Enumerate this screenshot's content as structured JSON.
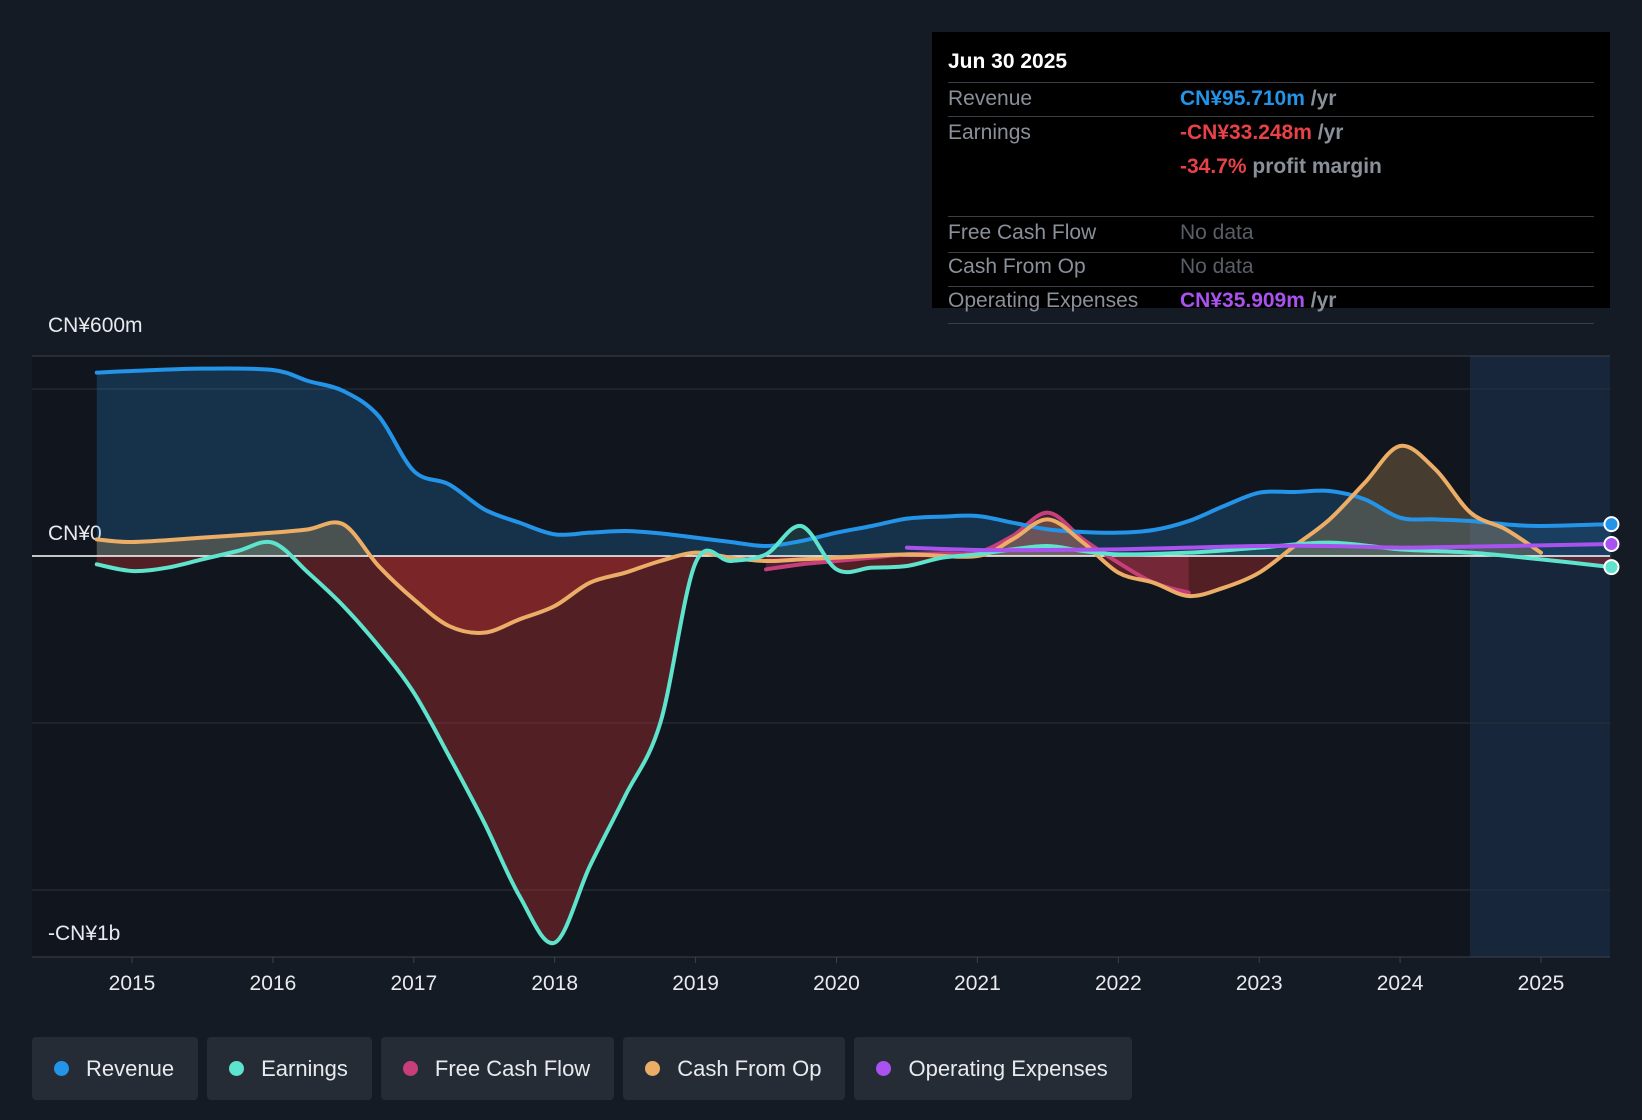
{
  "chart_data": {
    "type": "line",
    "title": "",
    "y_labels": {
      "top": "CN¥600m",
      "zero": "CN¥0",
      "bottom": "-CN¥1b"
    },
    "ylim": [
      -1200,
      600
    ],
    "x_ticks": [
      "2015",
      "2016",
      "2017",
      "2018",
      "2019",
      "2020",
      "2021",
      "2022",
      "2023",
      "2024",
      "2025"
    ],
    "forecast_start": 2024.5,
    "series": [
      {
        "name": "Revenue",
        "color": "#2394e8",
        "fill": true,
        "points": [
          [
            2014.75,
            550
          ],
          [
            2015.0,
            555
          ],
          [
            2015.5,
            562
          ],
          [
            2016.0,
            558
          ],
          [
            2016.25,
            525
          ],
          [
            2016.5,
            495
          ],
          [
            2016.75,
            420
          ],
          [
            2017.0,
            255
          ],
          [
            2017.25,
            215
          ],
          [
            2017.5,
            140
          ],
          [
            2017.75,
            100
          ],
          [
            2018.0,
            65
          ],
          [
            2018.25,
            70
          ],
          [
            2018.5,
            75
          ],
          [
            2018.75,
            68
          ],
          [
            2019.0,
            55
          ],
          [
            2019.25,
            42
          ],
          [
            2019.5,
            30
          ],
          [
            2019.75,
            45
          ],
          [
            2020.0,
            70
          ],
          [
            2020.25,
            90
          ],
          [
            2020.5,
            112
          ],
          [
            2020.75,
            118
          ],
          [
            2021.0,
            120
          ],
          [
            2021.25,
            100
          ],
          [
            2021.5,
            80
          ],
          [
            2021.75,
            72
          ],
          [
            2022.0,
            70
          ],
          [
            2022.25,
            78
          ],
          [
            2022.5,
            105
          ],
          [
            2022.75,
            150
          ],
          [
            2023.0,
            190
          ],
          [
            2023.25,
            192
          ],
          [
            2023.5,
            195
          ],
          [
            2023.75,
            170
          ],
          [
            2024.0,
            115
          ],
          [
            2024.25,
            110
          ],
          [
            2024.5,
            105
          ],
          [
            2024.75,
            95
          ],
          [
            2025.0,
            90
          ],
          [
            2025.5,
            95.71
          ]
        ]
      },
      {
        "name": "Earnings",
        "color": "#5ee3cc",
        "fill": true,
        "points": [
          [
            2014.75,
            -25
          ],
          [
            2015.0,
            -45
          ],
          [
            2015.25,
            -35
          ],
          [
            2015.5,
            -10
          ],
          [
            2015.75,
            15
          ],
          [
            2016.0,
            40
          ],
          [
            2016.25,
            -50
          ],
          [
            2016.5,
            -150
          ],
          [
            2016.75,
            -270
          ],
          [
            2017.0,
            -410
          ],
          [
            2017.25,
            -600
          ],
          [
            2017.5,
            -800
          ],
          [
            2017.75,
            -1020
          ],
          [
            2018.0,
            -1160
          ],
          [
            2018.25,
            -930
          ],
          [
            2018.5,
            -720
          ],
          [
            2018.75,
            -500
          ],
          [
            2019.0,
            -20
          ],
          [
            2019.25,
            -15
          ],
          [
            2019.5,
            5
          ],
          [
            2019.75,
            90
          ],
          [
            2020.0,
            -40
          ],
          [
            2020.25,
            -35
          ],
          [
            2020.5,
            -30
          ],
          [
            2020.75,
            -5
          ],
          [
            2021.0,
            5
          ],
          [
            2021.25,
            20
          ],
          [
            2021.5,
            30
          ],
          [
            2021.75,
            15
          ],
          [
            2022.0,
            5
          ],
          [
            2022.5,
            10
          ],
          [
            2023.0,
            25
          ],
          [
            2023.5,
            40
          ],
          [
            2024.0,
            20
          ],
          [
            2024.5,
            10
          ],
          [
            2025.0,
            -10
          ],
          [
            2025.5,
            -33.248
          ]
        ]
      },
      {
        "name": "Free Cash Flow",
        "color": "#c73f7a",
        "fill": true,
        "points": [
          [
            2019.5,
            -40
          ],
          [
            2019.75,
            -25
          ],
          [
            2020.0,
            -15
          ],
          [
            2020.25,
            -5
          ],
          [
            2020.5,
            5
          ],
          [
            2020.75,
            8
          ],
          [
            2021.0,
            10
          ],
          [
            2021.25,
            60
          ],
          [
            2021.5,
            130
          ],
          [
            2021.75,
            50
          ],
          [
            2022.0,
            -20
          ],
          [
            2022.25,
            -80
          ],
          [
            2022.5,
            -110
          ]
        ]
      },
      {
        "name": "Cash From Op",
        "color": "#ecae67",
        "fill": true,
        "points": [
          [
            2014.75,
            50
          ],
          [
            2015.0,
            42
          ],
          [
            2015.5,
            55
          ],
          [
            2016.0,
            70
          ],
          [
            2016.25,
            80
          ],
          [
            2016.5,
            95
          ],
          [
            2016.75,
            -30
          ],
          [
            2017.0,
            -130
          ],
          [
            2017.25,
            -210
          ],
          [
            2017.5,
            -230
          ],
          [
            2017.75,
            -190
          ],
          [
            2018.0,
            -150
          ],
          [
            2018.25,
            -80
          ],
          [
            2018.5,
            -50
          ],
          [
            2018.75,
            -15
          ],
          [
            2019.0,
            10
          ],
          [
            2019.25,
            -5
          ],
          [
            2019.5,
            -15
          ],
          [
            2019.75,
            -10
          ],
          [
            2020.0,
            -5
          ],
          [
            2020.5,
            5
          ],
          [
            2021.0,
            0
          ],
          [
            2021.25,
            50
          ],
          [
            2021.5,
            110
          ],
          [
            2021.75,
            40
          ],
          [
            2022.0,
            -50
          ],
          [
            2022.25,
            -80
          ],
          [
            2022.5,
            -120
          ],
          [
            2022.75,
            -95
          ],
          [
            2023.0,
            -50
          ],
          [
            2023.25,
            30
          ],
          [
            2023.5,
            110
          ],
          [
            2023.75,
            220
          ],
          [
            2024.0,
            330
          ],
          [
            2024.25,
            260
          ],
          [
            2024.5,
            130
          ],
          [
            2024.75,
            80
          ],
          [
            2025.0,
            10
          ]
        ]
      },
      {
        "name": "Operating Expenses",
        "color": "#a952f0",
        "fill": false,
        "points": [
          [
            2020.5,
            25
          ],
          [
            2021.0,
            18
          ],
          [
            2021.5,
            18
          ],
          [
            2022.0,
            20
          ],
          [
            2022.5,
            25
          ],
          [
            2023.0,
            30
          ],
          [
            2023.5,
            30
          ],
          [
            2024.0,
            25
          ],
          [
            2024.5,
            28
          ],
          [
            2025.0,
            32
          ],
          [
            2025.5,
            35.909
          ]
        ]
      }
    ]
  },
  "tooltip": {
    "date": "Jun 30 2025",
    "rows": [
      {
        "label": "Revenue",
        "value": "CN¥95.710m",
        "unit": "/yr",
        "color": "#2394e8"
      },
      {
        "label": "Earnings",
        "value": "-CN¥33.248m",
        "unit": "/yr",
        "color": "#e84148"
      },
      {
        "label": "",
        "value": "-34.7%",
        "unit": "profit margin",
        "color": "#e84148"
      },
      {
        "label": "Free Cash Flow",
        "value": "No data"
      },
      {
        "label": "Cash From Op",
        "value": "No data"
      },
      {
        "label": "Operating Expenses",
        "value": "CN¥35.909m",
        "unit": "/yr",
        "color": "#a952f0"
      }
    ]
  },
  "legend": [
    {
      "label": "Revenue",
      "color": "#2394e8"
    },
    {
      "label": "Earnings",
      "color": "#5ee3cc"
    },
    {
      "label": "Free Cash Flow",
      "color": "#c73f7a"
    },
    {
      "label": "Cash From Op",
      "color": "#ecae67"
    },
    {
      "label": "Operating Expenses",
      "color": "#a952f0"
    }
  ]
}
